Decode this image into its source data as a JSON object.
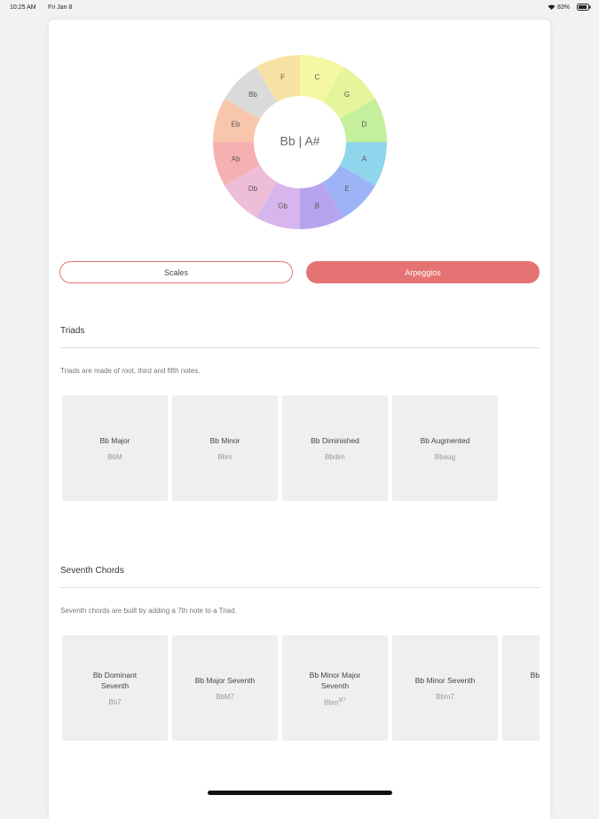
{
  "status_bar": {
    "time": "10:25 AM",
    "date": "Fri Jan 8",
    "battery": "83%"
  },
  "wheel": {
    "notes": [
      {
        "label": "C",
        "color": "#f6f7a3"
      },
      {
        "label": "G",
        "color": "#e5f59b"
      },
      {
        "label": "D",
        "color": "#c4ef9b"
      },
      {
        "label": "A",
        "color": "#8fd5ec"
      },
      {
        "label": "E",
        "color": "#9cb3f7"
      },
      {
        "label": "B",
        "color": "#b7a4ef"
      },
      {
        "label": "Gb",
        "color": "#d6b6ec"
      },
      {
        "label": "Db",
        "color": "#eebdd8"
      },
      {
        "label": "Ab",
        "color": "#f5b0b2"
      },
      {
        "label": "Eb",
        "color": "#f8c6ab"
      },
      {
        "label": "Bb",
        "color": "#dadada"
      },
      {
        "label": "F",
        "color": "#f8e2a3"
      }
    ],
    "center_label": "Bb | A#"
  },
  "tabs": [
    "Scales",
    "Arpeggios"
  ],
  "sections": [
    {
      "title": "Triads",
      "description": "Triads are made of root, third and fifth notes.",
      "chords": [
        {
          "name": "Bb Major",
          "symbol": "BbM"
        },
        {
          "name": "Bb Minor",
          "symbol": "Bbm"
        },
        {
          "name": "Bb Diminished",
          "symbol": "Bbdim"
        },
        {
          "name": "Bb Augmented",
          "symbol": "Bbaug"
        }
      ]
    },
    {
      "title": "Seventh Chords",
      "description": "Seventh chords are built by adding a 7th note to a Triad.",
      "chords": [
        {
          "name": "Bb Dominant Seventh",
          "symbol": "Bb7"
        },
        {
          "name": "Bb Major Seventh",
          "symbol": "BbM7"
        },
        {
          "name": "Bb Minor Major Seventh",
          "symbol": "Bbm",
          "symbol_sup": "M7"
        },
        {
          "name": "Bb Minor Seventh",
          "symbol": "Bbm7"
        },
        {
          "name": "Bb Augmented Seventh",
          "symbol": "|"
        }
      ]
    }
  ]
}
